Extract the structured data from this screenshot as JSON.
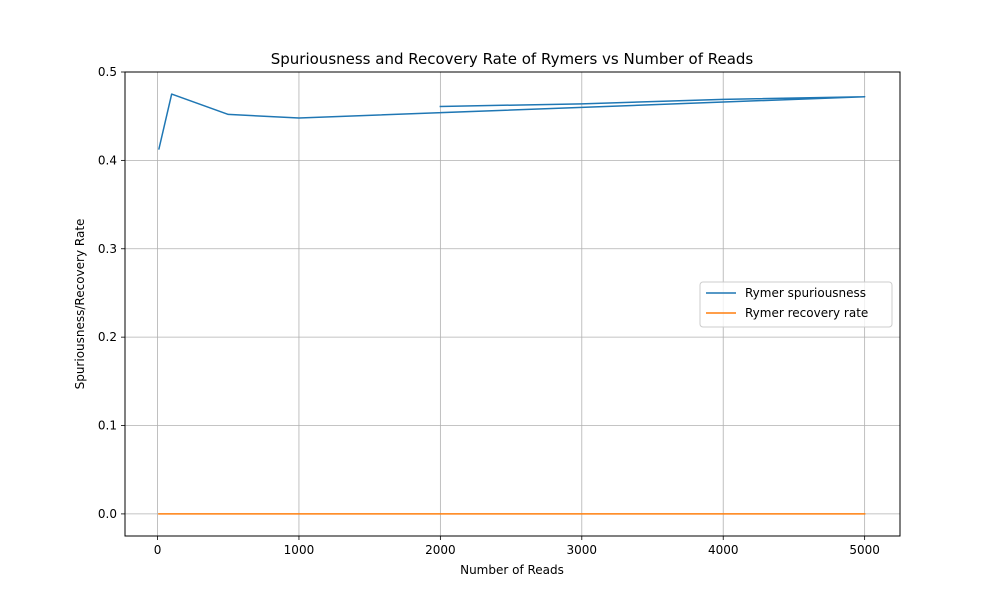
{
  "chart_data": {
    "type": "line",
    "title": "Spuriousness and Recovery Rate of Rymers vs Number of Reads",
    "xlabel": "Number of Reads",
    "ylabel": "Spuriousness/Recovery Rate",
    "xlim": [
      -230,
      5250
    ],
    "ylim": [
      -0.025,
      0.5
    ],
    "xticks": [
      0,
      1000,
      2000,
      3000,
      4000,
      5000
    ],
    "xtick_labels": [
      "0",
      "1000",
      "2000",
      "3000",
      "4000",
      "5000"
    ],
    "yticks": [
      0.0,
      0.1,
      0.2,
      0.3,
      0.4,
      0.5
    ],
    "ytick_labels": [
      "0.0",
      "0.1",
      "0.2",
      "0.3",
      "0.4",
      "0.5"
    ],
    "grid": true,
    "legend_position": "center-right",
    "series": [
      {
        "name": "Rymer spuriousness",
        "color": "#1f77b4",
        "x": [
          10,
          100,
          500,
          1000,
          5000,
          4000,
          2000,
          3000,
          5000,
          4000,
          3000,
          2000
        ],
        "y": [
          0.413,
          0.475,
          0.452,
          0.448,
          0.472,
          0.466,
          0.454,
          0.46,
          0.472,
          0.469,
          0.464,
          0.461
        ]
      },
      {
        "name": "Rymer recovery rate",
        "color": "#ff7f0e",
        "x": [
          10,
          100,
          500,
          1000,
          2000,
          3000,
          4000,
          5000
        ],
        "y": [
          0.0,
          0.0,
          0.0,
          0.0,
          0.0,
          0.0,
          0.0,
          0.0
        ]
      }
    ]
  }
}
